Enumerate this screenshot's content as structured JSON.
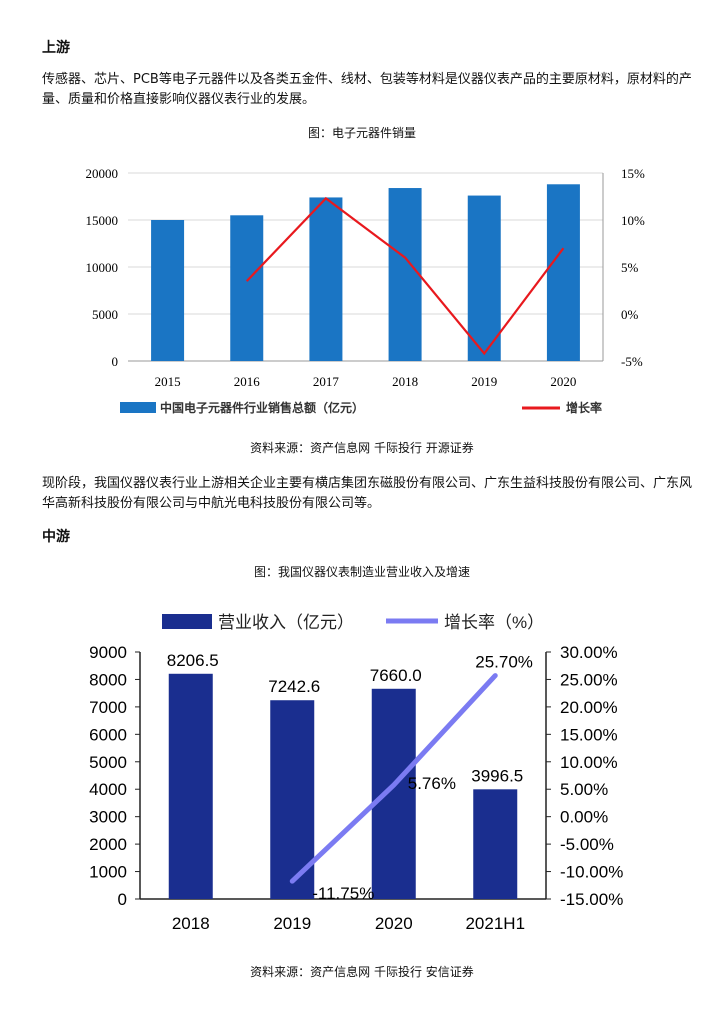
{
  "sections": {
    "upstream": {
      "heading": "上游",
      "paragraph": "传感器、芯片、PCB等电子元器件以及各类五金件、线材、包装等材料是仪器仪表产品的主要原材料，原材料的产量、质量和价格直接影响仪器仪表行业的发展。",
      "figure_caption": "图：电子元器件销量",
      "source": "资料来源：资产信息网 千际投行 开源证券"
    },
    "current": {
      "paragraph": "现阶段，我国仪器仪表行业上游相关企业主要有横店集团东磁股份有限公司、广东生益科技股份有限公司、广东风华高新科技股份有限公司与中航光电科技股份有限公司等。"
    },
    "midstream": {
      "heading": "中游",
      "figure_caption": "图：我国仪器仪表制造业营业收入及增速",
      "source": "资料来源：资产信息网 千际投行 安信证券"
    }
  },
  "chart_data": [
    {
      "type": "bar",
      "title": "电子元器件销量",
      "categories": [
        "2015",
        "2016",
        "2017",
        "2018",
        "2019",
        "2020"
      ],
      "series": [
        {
          "name": "中国电子元器件行业销售总额（亿元）",
          "kind": "bar",
          "axis": "left",
          "values": [
            15000,
            15500,
            17400,
            18400,
            17600,
            18800
          ]
        },
        {
          "name": "增长率",
          "kind": "line",
          "axis": "right",
          "values": [
            null,
            3.5,
            12.3,
            6.0,
            -4.2,
            7.0
          ]
        }
      ],
      "y_left": {
        "min": 0,
        "max": 20000,
        "ticks": [
          0,
          5000,
          10000,
          15000,
          20000
        ],
        "tick_labels": [
          "0",
          "5000",
          "10000",
          "15000",
          "20000"
        ]
      },
      "y_right": {
        "min": -5,
        "max": 15,
        "ticks": [
          -5,
          0,
          5,
          10,
          15
        ],
        "tick_labels": [
          "-5%",
          "0%",
          "5%",
          "10%",
          "15%"
        ]
      },
      "colors": {
        "bar": "#1a75c4",
        "line": "#e8191e",
        "grid": "#d9d9d9"
      },
      "legend_position": "bottom"
    },
    {
      "type": "bar",
      "title": "我国仪器仪表制造业营业收入及增速",
      "categories": [
        "2018",
        "2019",
        "2020",
        "2021H1"
      ],
      "series": [
        {
          "name": "营业收入（亿元）",
          "kind": "bar",
          "axis": "left",
          "values": [
            8206.5,
            7242.6,
            7660.0,
            3996.5
          ],
          "labels": [
            "8206.5",
            "7242.6",
            "7660.0",
            "3996.5"
          ]
        },
        {
          "name": "增长率（%）",
          "kind": "line",
          "axis": "right",
          "values": [
            null,
            -11.75,
            5.76,
            25.7
          ],
          "labels": [
            "",
            "-11.75%",
            "5.76%",
            "25.70%"
          ]
        }
      ],
      "y_left": {
        "min": 0,
        "max": 9000,
        "ticks": [
          0,
          1000,
          2000,
          3000,
          4000,
          5000,
          6000,
          7000,
          8000,
          9000
        ],
        "tick_labels": [
          "0",
          "1000",
          "2000",
          "3000",
          "4000",
          "5000",
          "6000",
          "7000",
          "8000",
          "9000"
        ]
      },
      "y_right": {
        "min": -15,
        "max": 30,
        "ticks": [
          -15,
          -10,
          -5,
          0,
          5,
          10,
          15,
          20,
          25,
          30
        ],
        "tick_labels": [
          "-15.00%",
          "-10.00%",
          "-5.00%",
          "0.00%",
          "5.00%",
          "10.00%",
          "15.00%",
          "20.00%",
          "25.00%",
          "30.00%"
        ]
      },
      "colors": {
        "bar": "#1a2e8f",
        "line": "#7b7bf2",
        "axis": "#222222"
      },
      "legend_position": "top"
    }
  ]
}
